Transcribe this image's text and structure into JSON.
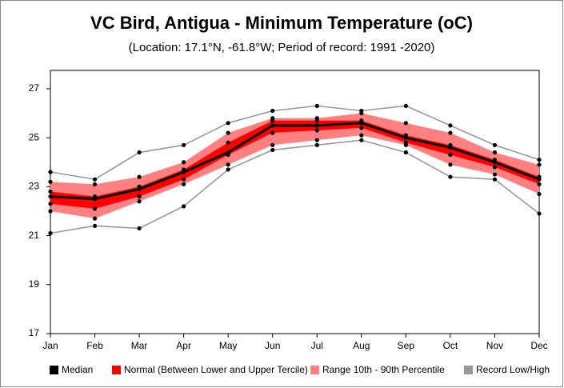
{
  "chart_data": {
    "type": "line",
    "title": "VC Bird, Antigua - Minimum Temperature (oC)",
    "subtitle": "(Location: 17.1°N, -61.8°W; Period of record: 1991 -2020)",
    "categories": [
      "Jan",
      "Feb",
      "Mar",
      "Apr",
      "May",
      "Jun",
      "Jul",
      "Aug",
      "Sep",
      "Oct",
      "Nov",
      "Dec"
    ],
    "ylim": [
      17,
      27.75
    ],
    "yticks": [
      17,
      19,
      21,
      23,
      25,
      27
    ],
    "grid": false,
    "legend": "bottom",
    "bands": [
      {
        "name": "Range 10th - 90th Percentile",
        "color": "#ff8080",
        "lower": [
          22.0,
          21.7,
          22.4,
          23.1,
          23.9,
          24.7,
          24.9,
          25.1,
          24.7,
          23.9,
          23.5,
          22.7
        ],
        "upper": [
          23.2,
          23.1,
          23.4,
          24.0,
          25.2,
          25.8,
          25.8,
          26.0,
          25.6,
          25.2,
          24.4,
          23.9
        ]
      },
      {
        "name": "Normal (Between Lower and Upper Tercile)",
        "color": "#ff0000",
        "lower": [
          22.3,
          22.1,
          22.6,
          23.3,
          24.3,
          25.2,
          25.3,
          25.4,
          24.8,
          24.3,
          23.8,
          23.1
        ],
        "upper": [
          22.8,
          22.6,
          23.0,
          23.7,
          24.8,
          25.7,
          25.7,
          25.7,
          25.1,
          24.7,
          24.1,
          23.4
        ]
      }
    ],
    "records": {
      "name": "Record Low/High",
      "color": "#999999",
      "low": [
        21.1,
        21.4,
        21.3,
        22.2,
        23.7,
        24.5,
        24.7,
        24.9,
        24.4,
        23.4,
        23.3,
        21.9
      ],
      "high": [
        23.6,
        23.3,
        24.4,
        24.7,
        25.6,
        26.1,
        26.3,
        26.1,
        26.3,
        25.5,
        24.7,
        24.1
      ]
    },
    "series": [
      {
        "name": "Median",
        "color": "#000000",
        "values": [
          22.6,
          22.5,
          22.9,
          23.6,
          24.4,
          25.5,
          25.5,
          25.6,
          25.0,
          24.6,
          24.0,
          23.3
        ]
      }
    ]
  }
}
